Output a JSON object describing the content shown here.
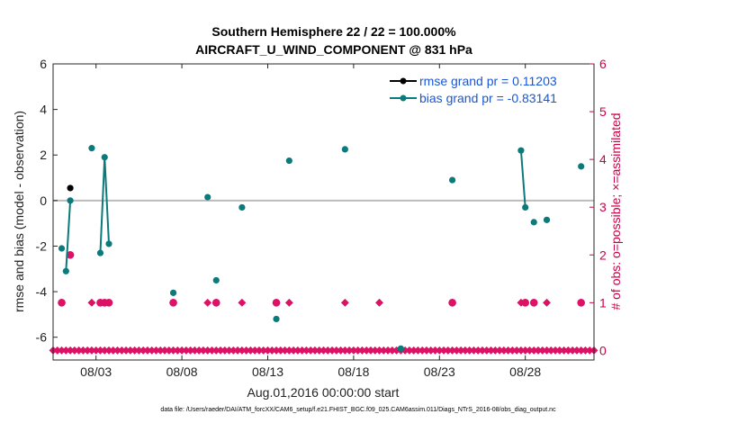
{
  "chart_data": {
    "type": "line",
    "title_line1": "Southern Hemisphere 22 / 22 = 100.000%",
    "title_line2": "AIRCRAFT_U_WIND_COMPONENT @ 831 hPa",
    "xlabel": "Aug.01,2016 00:00:00 start",
    "ylabel": "rmse and bias (model - observation)",
    "y2label": "# of obs: o=possible; ×=assimilated",
    "xlim": [
      0.0,
      31.5
    ],
    "ylim": [
      -7,
      6
    ],
    "y2lim": [
      -0.2,
      6
    ],
    "x_ticks": [
      2.5,
      7.5,
      12.5,
      17.5,
      22.5,
      27.5
    ],
    "x_tick_labels": [
      "08/03",
      "08/08",
      "08/13",
      "08/18",
      "08/23",
      "08/28"
    ],
    "y_ticks": [
      -6,
      -4,
      -2,
      0,
      2,
      4,
      6
    ],
    "y_tick_labels": [
      "-6",
      "-4",
      "-2",
      "0",
      "2",
      "4",
      "6"
    ],
    "y2_ticks": [
      0,
      1,
      2,
      3,
      4,
      5,
      6
    ],
    "y2_tick_labels": [
      "0",
      "1",
      "2",
      "3",
      "4",
      "5",
      "6"
    ],
    "colors": {
      "rmse": "#000000",
      "bias": "#0a7a7a",
      "obs": "#dd1166",
      "zero": "#bbbbbb",
      "legend_text": "#1a56d6",
      "right_axis": "#cc0044"
    },
    "series": [
      {
        "name": "rmse grand pr = 0.11203",
        "color": "#000000",
        "points": [
          [
            1.0,
            0.55
          ]
        ]
      },
      {
        "name": "bias grand pr = -0.83141",
        "color": "#0a7a7a",
        "segments": [
          [
            [
              0.5,
              -2.1
            ]
          ],
          [
            [
              0.75,
              -3.1
            ],
            [
              1.0,
              0.0
            ]
          ],
          [
            [
              2.25,
              2.3
            ]
          ],
          [
            [
              2.75,
              -2.3
            ],
            [
              3.0,
              1.9
            ],
            [
              3.25,
              -1.9
            ]
          ],
          [
            [
              7.0,
              -4.05
            ]
          ],
          [
            [
              9.0,
              0.15
            ]
          ],
          [
            [
              9.5,
              -3.5
            ]
          ],
          [
            [
              11.0,
              -0.3
            ]
          ],
          [
            [
              13.0,
              -5.2
            ]
          ],
          [
            [
              13.75,
              1.75
            ]
          ],
          [
            [
              17.0,
              2.25
            ]
          ],
          [
            [
              20.25,
              -6.5
            ]
          ],
          [
            [
              23.25,
              0.9
            ]
          ],
          [
            [
              27.25,
              2.2
            ],
            [
              27.5,
              -0.3
            ]
          ],
          [
            [
              28.0,
              -0.95
            ]
          ],
          [
            [
              28.75,
              -0.85
            ]
          ],
          [
            [
              30.75,
              1.5
            ]
          ]
        ]
      }
    ],
    "obs_possible_x": [
      0.5,
      0.75,
      1.0,
      2.75,
      3.0,
      3.25,
      7.0,
      9.5,
      13.0,
      20.25,
      23.25,
      27.5,
      28.0,
      30.75
    ],
    "obs_assimilated": [
      {
        "x": 0.5,
        "y": 1
      },
      {
        "x": 1.0,
        "y": 2
      },
      {
        "x": 2.25,
        "y": 1
      },
      {
        "x": 2.75,
        "y": 1
      },
      {
        "x": 3.0,
        "y": 1
      },
      {
        "x": 3.25,
        "y": 1
      },
      {
        "x": 7.0,
        "y": 1
      },
      {
        "x": 9.0,
        "y": 1
      },
      {
        "x": 9.5,
        "y": 1
      },
      {
        "x": 11.0,
        "y": 1
      },
      {
        "x": 13.0,
        "y": 1
      },
      {
        "x": 13.75,
        "y": 1
      },
      {
        "x": 17.0,
        "y": 1
      },
      {
        "x": 19.0,
        "y": 1
      },
      {
        "x": 23.25,
        "y": 1
      },
      {
        "x": 27.25,
        "y": 1
      },
      {
        "x": 27.5,
        "y": 1
      },
      {
        "x": 28.0,
        "y": 1
      },
      {
        "x": 28.75,
        "y": 1
      },
      {
        "x": 30.75,
        "y": 1
      }
    ],
    "zero_count_ranges": [
      [
        0.0,
        1.75
      ],
      [
        2.0,
        31.5
      ]
    ],
    "zero_count_step": 0.25,
    "legend": [
      "rmse grand pr = 0.11203",
      "bias grand pr = -0.83141"
    ],
    "legend_position": "top-right"
  },
  "footer": "data file: /Users/raeder/DAI/ATM_forcXX/CAM6_setup/f.e21.FHIST_BGC.f09_025.CAM6assim.011/Diags_NTrS_2016-08/obs_diag_output.nc"
}
